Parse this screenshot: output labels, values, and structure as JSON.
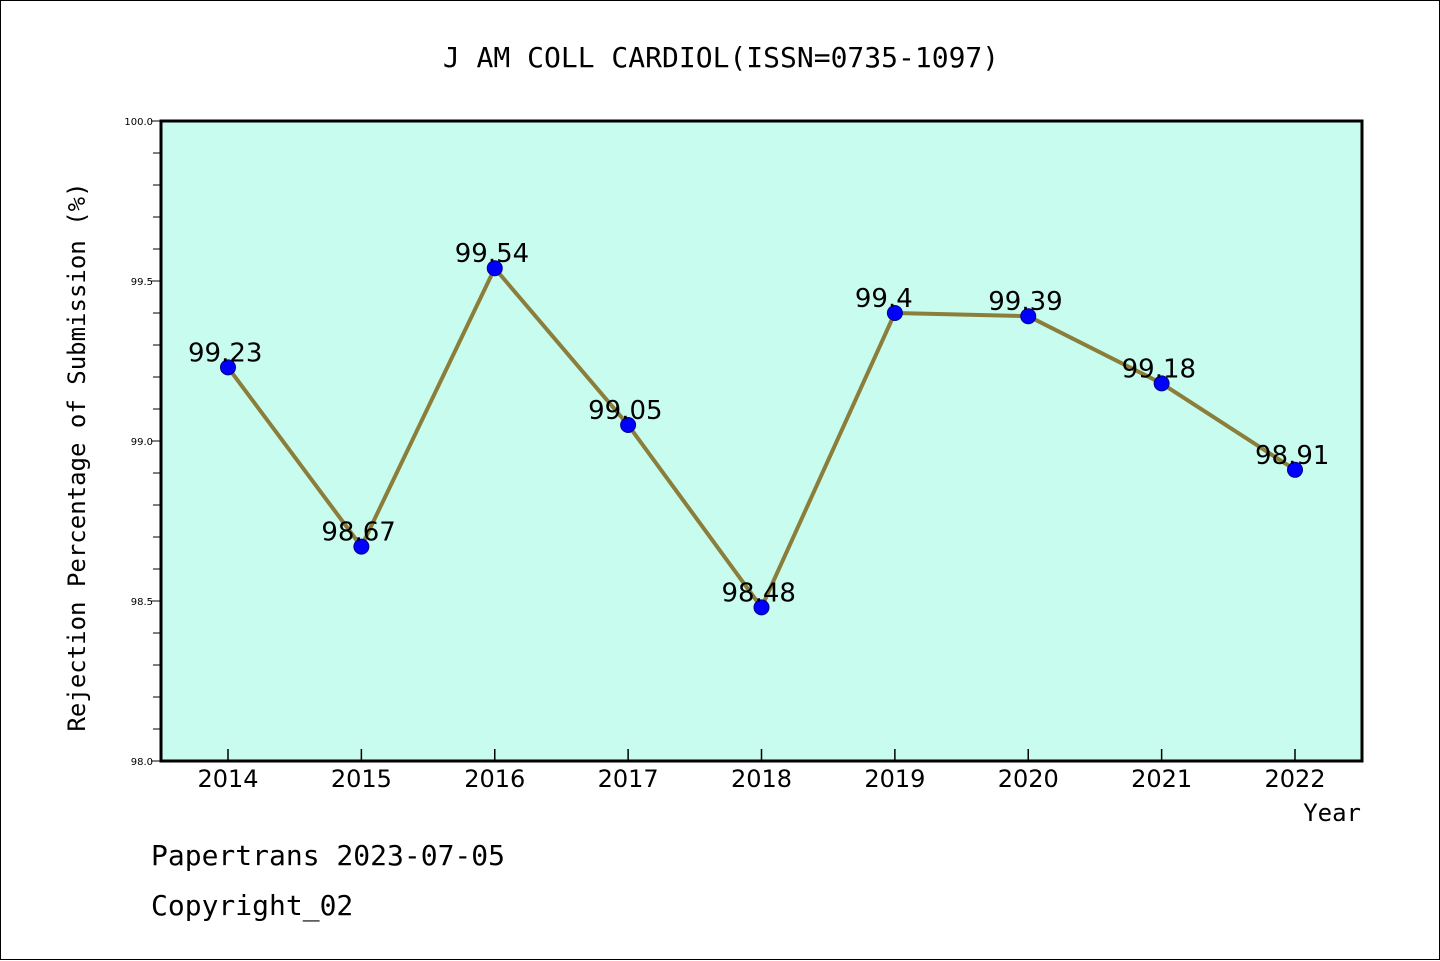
{
  "chart_data": {
    "type": "line",
    "title": "J AM COLL CARDIOL(ISSN=0735-1097)",
    "xlabel": "Year",
    "ylabel": "Rejection Percentage of Submission (%)",
    "categories": [
      "2014",
      "2015",
      "2016",
      "2017",
      "2018",
      "2019",
      "2020",
      "2021",
      "2022"
    ],
    "values": [
      99.23,
      98.67,
      99.54,
      99.05,
      98.48,
      99.4,
      99.39,
      99.18,
      98.91
    ],
    "data_labels": [
      "99.23",
      "98.67",
      "99.54",
      "99.05",
      "98.48",
      "99.4",
      "99.39",
      "99.18",
      "98.91"
    ],
    "ylim": [
      98.0,
      100.0
    ],
    "yticks": [
      "98.0",
      "98.5",
      "99.0",
      "99.5",
      "100.0"
    ],
    "grid": false,
    "colors": {
      "plot_background": "#c8fcee",
      "line": "#8b7d3a",
      "marker": "#0000ff"
    }
  },
  "footer": {
    "line1": "Papertrans 2023-07-05",
    "line2": "Copyright_02"
  }
}
